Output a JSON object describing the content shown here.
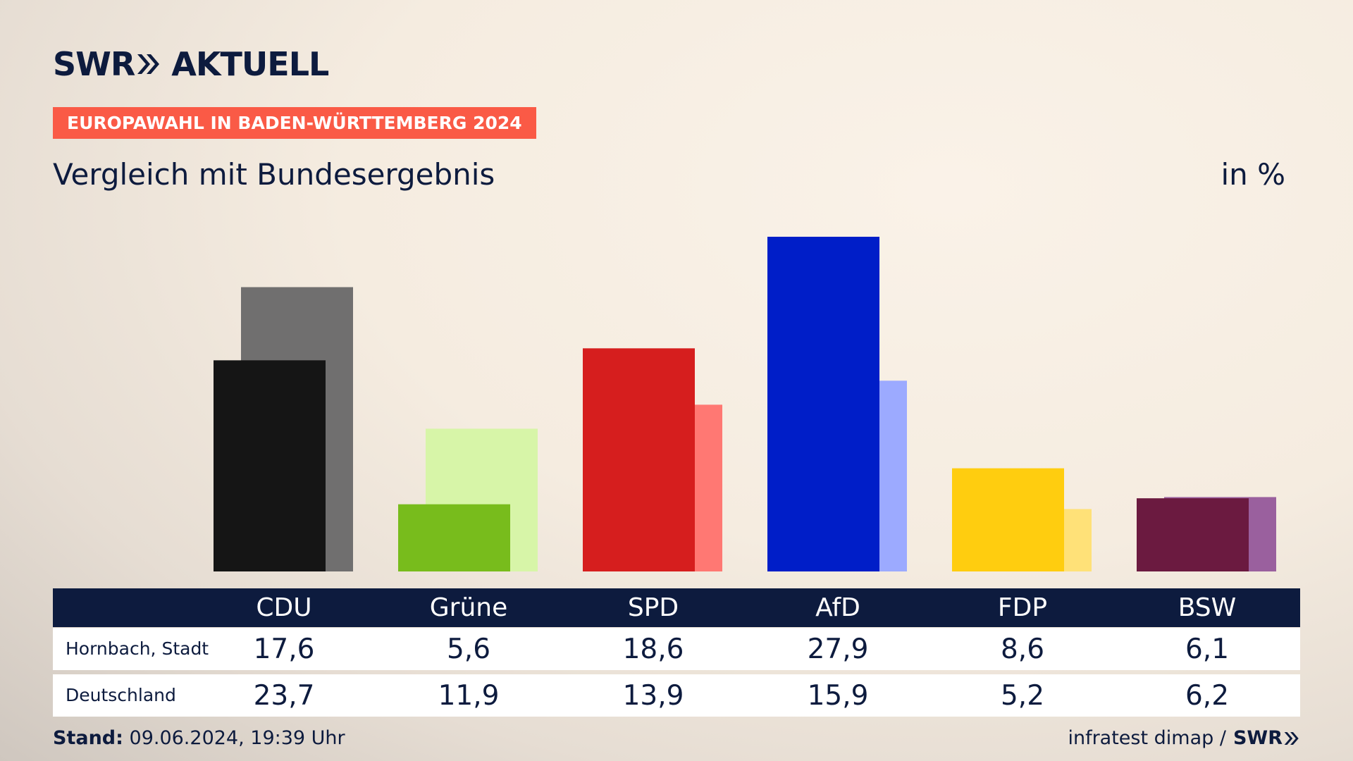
{
  "brand": {
    "logo_prefix": "SWR",
    "logo_suffix": "AKTUELL",
    "footer_logo": "SWR"
  },
  "kicker": "EUROPAWAHL IN BADEN-WÜRTTEMBERG 2024",
  "subtitle": "Vergleich mit Bundesergebnis",
  "unit_label": "in %",
  "footer": {
    "stand_label": "Stand:",
    "stand_value": "09.06.2024, 19:39 Uhr",
    "source": "infratest dimap /"
  },
  "colors": {
    "accent": "#fa5a46",
    "navy": "#0d1b3e"
  },
  "chart_data": {
    "type": "bar",
    "categories": [
      "CDU",
      "Grüne",
      "SPD",
      "AfD",
      "FDP",
      "BSW"
    ],
    "series": [
      {
        "name": "Hornbach, Stadt",
        "values": [
          17.6,
          5.6,
          18.6,
          27.9,
          8.6,
          6.1
        ],
        "colors": [
          "#151515",
          "#78bc1c",
          "#d61e1e",
          "#001ec8",
          "#ffcd0f",
          "#6b1a40"
        ]
      },
      {
        "name": "Deutschland",
        "values": [
          23.7,
          11.9,
          13.9,
          15.9,
          5.2,
          6.2
        ],
        "colors": [
          "#706f6f",
          "#d7f5a8",
          "#ff7873",
          "#9caaff",
          "#ffe178",
          "#9a609e"
        ]
      }
    ],
    "ylim": [
      0,
      30
    ],
    "grid": false,
    "legend": "table below chart"
  }
}
